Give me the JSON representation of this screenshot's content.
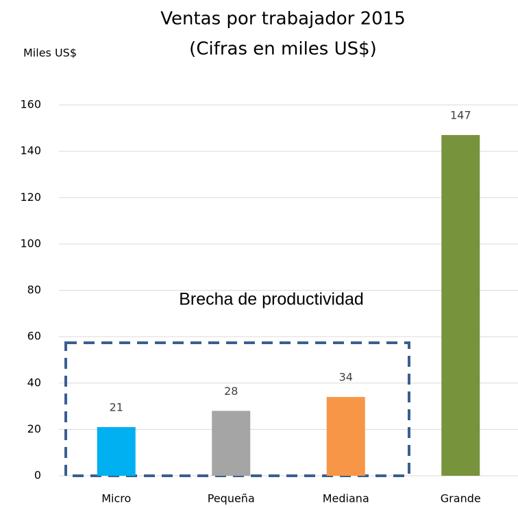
{
  "chart_data": {
    "type": "bar",
    "title": "Ventas por trabajador 2015",
    "subtitle": "(Cifras en miles US$)",
    "y_label": "Miles US$",
    "annotation": "Brecha de productividad",
    "categories": [
      "Micro",
      "Pequeña",
      "Mediana",
      "Grande"
    ],
    "values": [
      21,
      28,
      34,
      147
    ],
    "colors": [
      "#00b0f0",
      "#a5a5a5",
      "#f79646",
      "#77933c"
    ],
    "ylim": [
      0,
      160
    ],
    "yticks": [
      0,
      20,
      40,
      60,
      80,
      100,
      120,
      140,
      160
    ],
    "grid": true
  }
}
